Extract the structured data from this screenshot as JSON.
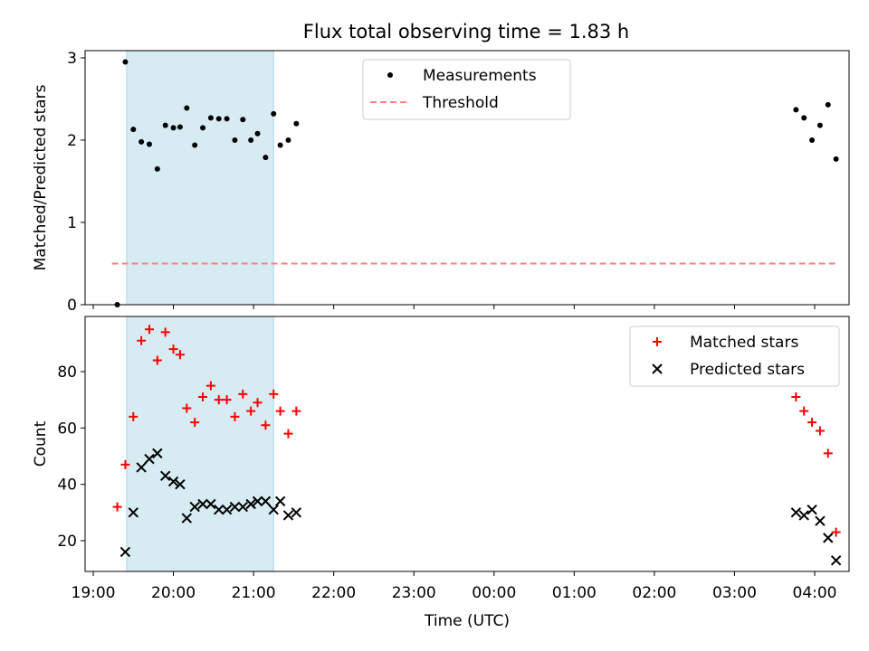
{
  "chart_data": [
    {
      "type": "scatter",
      "title": "Flux total observing time = 1.83 h",
      "xlabel": "",
      "ylabel": "Matched/Predicted stars",
      "xlim": [
        "18:56",
        "04:26"
      ],
      "ylim": [
        0,
        3.1
      ],
      "yticks": [
        0,
        1,
        2,
        3
      ],
      "xticks": [],
      "legend_position": "top-center",
      "highlight_span": {
        "x_start": "19:25",
        "x_end": "21:15",
        "color": "#add8e6"
      },
      "series": [
        {
          "name": "Measurements",
          "marker": "dot",
          "color": "#000000",
          "points": [
            {
              "x": "19:18",
              "y": 0.0
            },
            {
              "x": "19:24",
              "y": 2.95
            },
            {
              "x": "19:30",
              "y": 2.13
            },
            {
              "x": "19:36",
              "y": 1.98
            },
            {
              "x": "19:42",
              "y": 1.95
            },
            {
              "x": "19:48",
              "y": 1.65
            },
            {
              "x": "19:54",
              "y": 2.18
            },
            {
              "x": "20:00",
              "y": 2.15
            },
            {
              "x": "20:05",
              "y": 2.16
            },
            {
              "x": "20:10",
              "y": 2.39
            },
            {
              "x": "20:16",
              "y": 1.94
            },
            {
              "x": "20:22",
              "y": 2.15
            },
            {
              "x": "20:28",
              "y": 2.27
            },
            {
              "x": "20:34",
              "y": 2.26
            },
            {
              "x": "20:40",
              "y": 2.26
            },
            {
              "x": "20:46",
              "y": 2.0
            },
            {
              "x": "20:52",
              "y": 2.25
            },
            {
              "x": "20:58",
              "y": 2.0
            },
            {
              "x": "21:03",
              "y": 2.08
            },
            {
              "x": "21:09",
              "y": 1.79
            },
            {
              "x": "21:15",
              "y": 2.32
            },
            {
              "x": "21:20",
              "y": 1.94
            },
            {
              "x": "21:26",
              "y": 2.0
            },
            {
              "x": "21:32",
              "y": 2.2
            },
            {
              "x": "03:46",
              "y": 2.37
            },
            {
              "x": "03:52",
              "y": 2.27
            },
            {
              "x": "03:58",
              "y": 2.0
            },
            {
              "x": "04:04",
              "y": 2.18
            },
            {
              "x": "04:10",
              "y": 2.43
            },
            {
              "x": "04:16",
              "y": 1.77
            }
          ]
        },
        {
          "name": "Threshold",
          "style": "dashed",
          "color": "#ff7f7f",
          "points": [
            {
              "x": "19:14",
              "y": 0.5
            },
            {
              "x": "04:16",
              "y": 0.5
            }
          ]
        }
      ]
    },
    {
      "type": "scatter",
      "title": "",
      "xlabel": "Time (UTC)",
      "ylabel": "Count",
      "xlim": [
        "18:56",
        "04:26"
      ],
      "ylim": [
        9,
        99
      ],
      "yticks": [
        20,
        40,
        60,
        80
      ],
      "xticks": [
        "19:00",
        "20:00",
        "21:00",
        "22:00",
        "23:00",
        "00:00",
        "01:00",
        "02:00",
        "03:00",
        "04:00"
      ],
      "legend_position": "top-right",
      "highlight_span": {
        "x_start": "19:25",
        "x_end": "21:15",
        "color": "#add8e6"
      },
      "series": [
        {
          "name": "Matched stars",
          "marker": "plus",
          "color": "#ff0000",
          "points": [
            {
              "x": "19:18",
              "y": 32
            },
            {
              "x": "19:24",
              "y": 47
            },
            {
              "x": "19:30",
              "y": 64
            },
            {
              "x": "19:36",
              "y": 91
            },
            {
              "x": "19:42",
              "y": 95
            },
            {
              "x": "19:48",
              "y": 84
            },
            {
              "x": "19:54",
              "y": 94
            },
            {
              "x": "20:00",
              "y": 88
            },
            {
              "x": "20:05",
              "y": 86
            },
            {
              "x": "20:10",
              "y": 67
            },
            {
              "x": "20:16",
              "y": 62
            },
            {
              "x": "20:22",
              "y": 71
            },
            {
              "x": "20:28",
              "y": 75
            },
            {
              "x": "20:34",
              "y": 70
            },
            {
              "x": "20:40",
              "y": 70
            },
            {
              "x": "20:46",
              "y": 64
            },
            {
              "x": "20:52",
              "y": 72
            },
            {
              "x": "20:58",
              "y": 66
            },
            {
              "x": "21:03",
              "y": 69
            },
            {
              "x": "21:09",
              "y": 61
            },
            {
              "x": "21:15",
              "y": 72
            },
            {
              "x": "21:20",
              "y": 66
            },
            {
              "x": "21:26",
              "y": 58
            },
            {
              "x": "21:32",
              "y": 66
            },
            {
              "x": "03:46",
              "y": 71
            },
            {
              "x": "03:52",
              "y": 66
            },
            {
              "x": "03:58",
              "y": 62
            },
            {
              "x": "04:04",
              "y": 59
            },
            {
              "x": "04:10",
              "y": 51
            },
            {
              "x": "04:16",
              "y": 23
            }
          ]
        },
        {
          "name": "Predicted stars",
          "marker": "x",
          "color": "#000000",
          "points": [
            {
              "x": "19:24",
              "y": 16
            },
            {
              "x": "19:30",
              "y": 30
            },
            {
              "x": "19:36",
              "y": 46
            },
            {
              "x": "19:42",
              "y": 49
            },
            {
              "x": "19:48",
              "y": 51
            },
            {
              "x": "19:54",
              "y": 43
            },
            {
              "x": "20:00",
              "y": 41
            },
            {
              "x": "20:05",
              "y": 40
            },
            {
              "x": "20:10",
              "y": 28
            },
            {
              "x": "20:16",
              "y": 32
            },
            {
              "x": "20:22",
              "y": 33
            },
            {
              "x": "20:28",
              "y": 33
            },
            {
              "x": "20:34",
              "y": 31
            },
            {
              "x": "20:40",
              "y": 31
            },
            {
              "x": "20:46",
              "y": 32
            },
            {
              "x": "20:52",
              "y": 32
            },
            {
              "x": "20:58",
              "y": 33
            },
            {
              "x": "21:03",
              "y": 34
            },
            {
              "x": "21:09",
              "y": 34
            },
            {
              "x": "21:15",
              "y": 31
            },
            {
              "x": "21:20",
              "y": 34
            },
            {
              "x": "21:26",
              "y": 29
            },
            {
              "x": "21:32",
              "y": 30
            },
            {
              "x": "03:46",
              "y": 30
            },
            {
              "x": "03:52",
              "y": 29
            },
            {
              "x": "03:58",
              "y": 31
            },
            {
              "x": "04:04",
              "y": 27
            },
            {
              "x": "04:10",
              "y": 21
            },
            {
              "x": "04:16",
              "y": 13
            }
          ]
        }
      ]
    }
  ]
}
